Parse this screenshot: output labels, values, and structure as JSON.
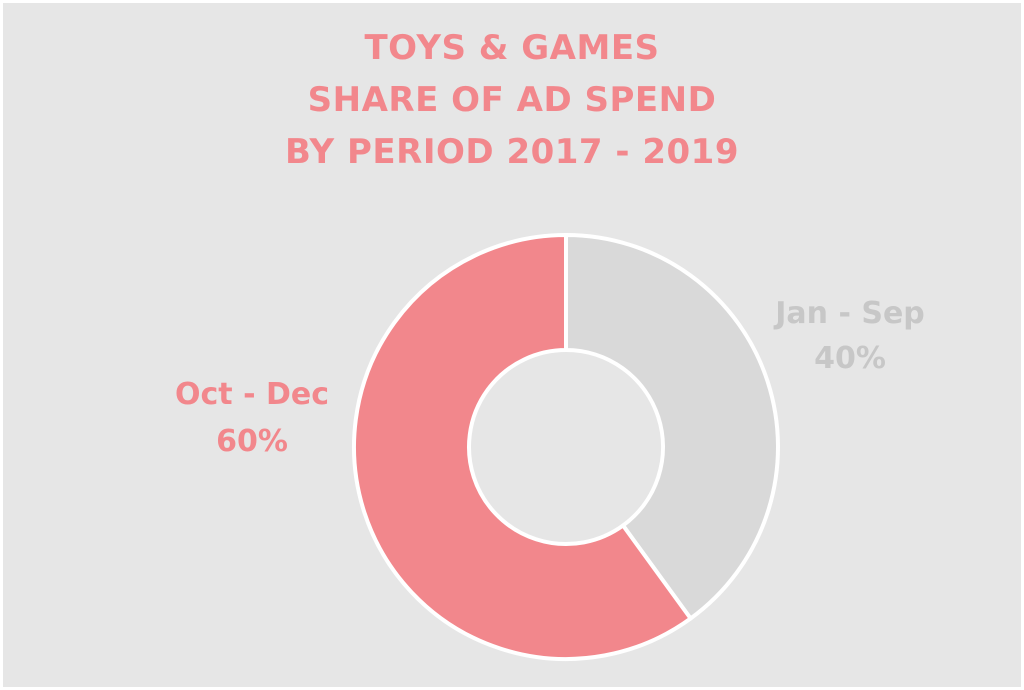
{
  "chart_data": {
    "type": "pie",
    "donut": true,
    "title_lines": [
      "TOYS & GAMES",
      "SHARE OF AD SPEND",
      "BY PERIOD 2017 - 2019"
    ],
    "categories": [
      "Jan - Sep",
      "Oct - Dec"
    ],
    "values": [
      40,
      60
    ],
    "value_labels": [
      "40%",
      "60%"
    ],
    "colors": [
      "#d9d9d9",
      "#f2878c"
    ],
    "label_colors": [
      "#c7c7c7",
      "#f2878c"
    ],
    "background_color": "#e6e6e6",
    "title_color": "#f2878c",
    "legend": "none"
  }
}
